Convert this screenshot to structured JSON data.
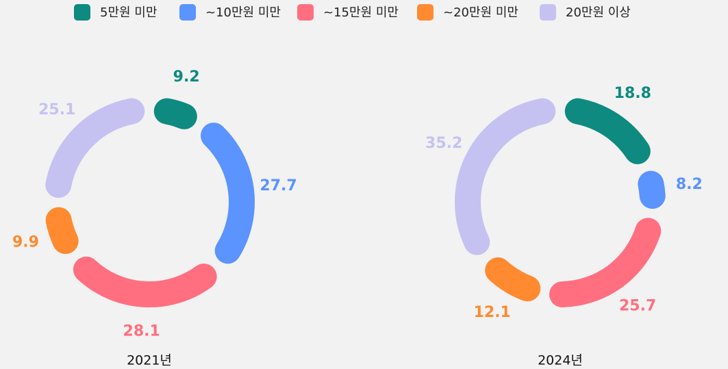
{
  "chart_data": [
    {
      "type": "pie",
      "title": "2021년",
      "categories": [
        "5만원 미만",
        "~10만원 미만",
        "~15만원 미만",
        "~20만원 미만",
        "20만원 이상"
      ],
      "colors": [
        "#0e8a80",
        "#5b93ff",
        "#ff6f80",
        "#ff8a30",
        "#c5c2f2"
      ],
      "values": [
        9.2,
        27.7,
        28.1,
        9.9,
        25.1
      ]
    },
    {
      "type": "pie",
      "title": "2024년",
      "values": [
        18.8,
        8.2,
        25.7,
        12.1,
        35.2
      ]
    }
  ]
}
